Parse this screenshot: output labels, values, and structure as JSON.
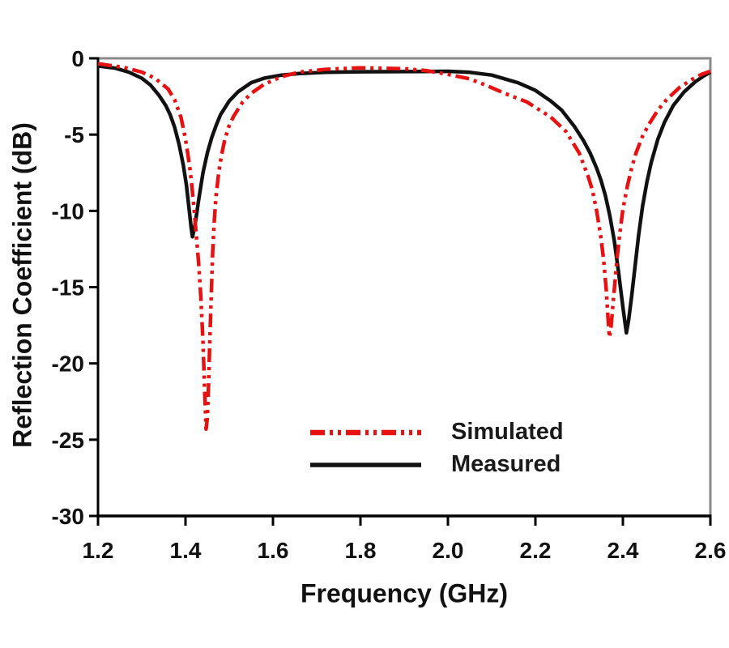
{
  "figure": {
    "background": "#ffffff",
    "text_color": "#111111",
    "frame_top_right_color": "#8a8a8a",
    "axis_color": "#000000"
  },
  "chart_data": {
    "type": "line",
    "title": "",
    "xlabel": "Frequency (GHz)",
    "ylabel": "Reflection Coefficient (dB)",
    "xlim": [
      1.2,
      2.6
    ],
    "ylim": [
      -30,
      0
    ],
    "x_ticks": [
      1.2,
      1.4,
      1.6,
      1.8,
      2.0,
      2.2,
      2.4,
      2.6
    ],
    "x_tick_labels": [
      "1.2",
      "1.4",
      "1.6",
      "1.8",
      "2.0",
      "2.2",
      "2.4",
      "2.6"
    ],
    "y_ticks": [
      0,
      -5,
      -10,
      -15,
      -20,
      -25,
      -30
    ],
    "y_tick_labels": [
      "0",
      "-5",
      "-10",
      "-15",
      "-20",
      "-25",
      "-30"
    ],
    "grid": false,
    "legend_position": "inside-bottom-center",
    "series": [
      {
        "name": "Simulated",
        "color": "#e81111",
        "style": "dash-dot-dot",
        "line_width": 4.5,
        "points": [
          [
            1.2,
            -0.35
          ],
          [
            1.26,
            -0.6
          ],
          [
            1.3,
            -0.9
          ],
          [
            1.33,
            -1.3
          ],
          [
            1.36,
            -2.0
          ],
          [
            1.375,
            -2.7
          ],
          [
            1.39,
            -3.9
          ],
          [
            1.4,
            -5.3
          ],
          [
            1.405,
            -6.2
          ],
          [
            1.41,
            -7.2
          ],
          [
            1.415,
            -8.5
          ],
          [
            1.42,
            -10.0
          ],
          [
            1.425,
            -11.7
          ],
          [
            1.43,
            -13.4
          ],
          [
            1.435,
            -15.6
          ],
          [
            1.44,
            -18.6
          ],
          [
            1.444,
            -22.0
          ],
          [
            1.447,
            -24.3
          ],
          [
            1.45,
            -23.6
          ],
          [
            1.453,
            -21.2
          ],
          [
            1.456,
            -18.2
          ],
          [
            1.459,
            -15.4
          ],
          [
            1.462,
            -12.8
          ],
          [
            1.466,
            -10.6
          ],
          [
            1.47,
            -9.0
          ],
          [
            1.476,
            -7.5
          ],
          [
            1.482,
            -6.4
          ],
          [
            1.49,
            -5.3
          ],
          [
            1.5,
            -4.4
          ],
          [
            1.51,
            -3.8
          ],
          [
            1.53,
            -2.9
          ],
          [
            1.55,
            -2.3
          ],
          [
            1.58,
            -1.7
          ],
          [
            1.62,
            -1.2
          ],
          [
            1.66,
            -0.9
          ],
          [
            1.72,
            -0.72
          ],
          [
            1.8,
            -0.62
          ],
          [
            1.9,
            -0.68
          ],
          [
            1.95,
            -0.8
          ],
          [
            2.0,
            -1.05
          ],
          [
            2.05,
            -1.35
          ],
          [
            2.09,
            -1.8
          ],
          [
            2.13,
            -2.3
          ],
          [
            2.18,
            -2.85
          ],
          [
            2.21,
            -3.4
          ],
          [
            2.235,
            -3.85
          ],
          [
            2.27,
            -4.8
          ],
          [
            2.3,
            -6.2
          ],
          [
            2.32,
            -7.7
          ],
          [
            2.33,
            -8.6
          ],
          [
            2.34,
            -10.0
          ],
          [
            2.35,
            -11.8
          ],
          [
            2.356,
            -13.2
          ],
          [
            2.362,
            -15.2
          ],
          [
            2.366,
            -17.0
          ],
          [
            2.369,
            -18.3
          ],
          [
            2.373,
            -17.6
          ],
          [
            2.377,
            -16.2
          ],
          [
            2.382,
            -14.6
          ],
          [
            2.387,
            -13.0
          ],
          [
            2.393,
            -11.5
          ],
          [
            2.4,
            -9.9
          ],
          [
            2.41,
            -8.4
          ],
          [
            2.42,
            -7.2
          ],
          [
            2.43,
            -6.2
          ],
          [
            2.445,
            -5.1
          ],
          [
            2.46,
            -4.3
          ],
          [
            2.48,
            -3.4
          ],
          [
            2.5,
            -2.7
          ],
          [
            2.53,
            -1.9
          ],
          [
            2.56,
            -1.35
          ],
          [
            2.58,
            -1.05
          ],
          [
            2.6,
            -0.85
          ]
        ],
        "resonances": [
          {
            "freq_ghz": 1.447,
            "depth_db": -24.3
          },
          {
            "freq_ghz": 2.369,
            "depth_db": -18.3
          }
        ]
      },
      {
        "name": "Measured",
        "color": "#111111",
        "style": "solid",
        "line_width": 4.5,
        "points": [
          [
            1.2,
            -0.5
          ],
          [
            1.24,
            -0.65
          ],
          [
            1.27,
            -0.9
          ],
          [
            1.3,
            -1.3
          ],
          [
            1.32,
            -1.75
          ],
          [
            1.34,
            -2.45
          ],
          [
            1.355,
            -3.1
          ],
          [
            1.365,
            -3.7
          ],
          [
            1.375,
            -4.5
          ],
          [
            1.385,
            -5.6
          ],
          [
            1.395,
            -7.0
          ],
          [
            1.402,
            -8.3
          ],
          [
            1.408,
            -9.8
          ],
          [
            1.413,
            -11.1
          ],
          [
            1.416,
            -11.7
          ],
          [
            1.42,
            -11.2
          ],
          [
            1.425,
            -10.3
          ],
          [
            1.43,
            -9.3
          ],
          [
            1.44,
            -7.5
          ],
          [
            1.45,
            -6.2
          ],
          [
            1.46,
            -5.2
          ],
          [
            1.47,
            -4.4
          ],
          [
            1.48,
            -3.7
          ],
          [
            1.5,
            -2.8
          ],
          [
            1.52,
            -2.2
          ],
          [
            1.55,
            -1.6
          ],
          [
            1.58,
            -1.3
          ],
          [
            1.62,
            -1.1
          ],
          [
            1.66,
            -1.0
          ],
          [
            1.72,
            -0.92
          ],
          [
            1.8,
            -0.88
          ],
          [
            1.9,
            -0.87
          ],
          [
            2.0,
            -0.85
          ],
          [
            2.05,
            -0.92
          ],
          [
            2.1,
            -1.1
          ],
          [
            2.16,
            -1.6
          ],
          [
            2.2,
            -2.1
          ],
          [
            2.235,
            -2.8
          ],
          [
            2.26,
            -3.4
          ],
          [
            2.29,
            -4.5
          ],
          [
            2.31,
            -5.4
          ],
          [
            2.325,
            -6.2
          ],
          [
            2.34,
            -7.2
          ],
          [
            2.35,
            -8.0
          ],
          [
            2.36,
            -9.0
          ],
          [
            2.37,
            -10.3
          ],
          [
            2.38,
            -11.9
          ],
          [
            2.39,
            -14.0
          ],
          [
            2.4,
            -16.3
          ],
          [
            2.408,
            -18.0
          ],
          [
            2.413,
            -17.2
          ],
          [
            2.42,
            -15.6
          ],
          [
            2.428,
            -13.6
          ],
          [
            2.436,
            -11.6
          ],
          [
            2.445,
            -9.7
          ],
          [
            2.455,
            -8.1
          ],
          [
            2.465,
            -6.8
          ],
          [
            2.48,
            -5.3
          ],
          [
            2.495,
            -4.2
          ],
          [
            2.515,
            -3.1
          ],
          [
            2.54,
            -2.2
          ],
          [
            2.565,
            -1.55
          ],
          [
            2.585,
            -1.15
          ],
          [
            2.6,
            -0.9
          ]
        ],
        "resonances": [
          {
            "freq_ghz": 1.416,
            "depth_db": -11.7
          },
          {
            "freq_ghz": 2.408,
            "depth_db": -18.0
          }
        ]
      }
    ]
  }
}
